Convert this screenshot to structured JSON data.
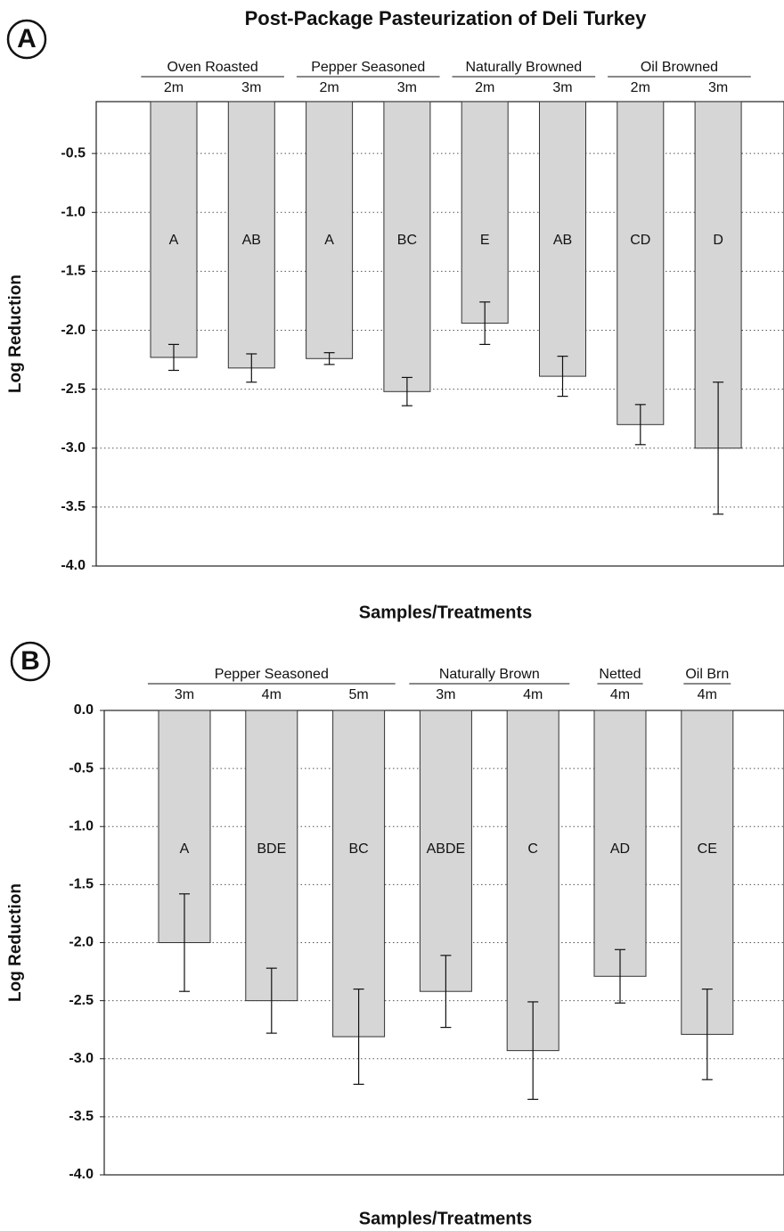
{
  "chart_data": [
    {
      "type": "bar",
      "title": "Post-Package Pasteurization of Deli Turkey",
      "panel": "A",
      "x_label": "Samples/Treatments",
      "y_label": "Log Reduction",
      "ylim": [
        -4.0,
        -0.06
      ],
      "yticks": [
        -0.5,
        {
          "value": -1.0,
          "label": "-1.0"
        },
        -1.5,
        {
          "value": -2.0,
          "label": "-2.0"
        },
        -2.5,
        {
          "value": -3.0,
          "label": "-3.0"
        },
        -3.5,
        {
          "value": -4.0,
          "label": "-4.0"
        }
      ],
      "grid": true,
      "color": "#d6d6d6",
      "groups": [
        {
          "name": "Oven Roasted",
          "categories": [
            "2m",
            "3m"
          ],
          "values": [
            -2.23,
            -2.32
          ],
          "errors": [
            0.11,
            0.12
          ],
          "letters": [
            "A",
            "AB"
          ]
        },
        {
          "name": "Pepper Seasoned",
          "categories": [
            "2m",
            "3m"
          ],
          "values": [
            -2.24,
            -2.52
          ],
          "errors": [
            0.05,
            0.12
          ],
          "letters": [
            "A",
            "BC"
          ]
        },
        {
          "name": "Naturally Browned",
          "categories": [
            "2m",
            "3m"
          ],
          "values": [
            -1.94,
            -2.39
          ],
          "errors": [
            0.18,
            0.17
          ],
          "letters": [
            "E",
            "AB"
          ]
        },
        {
          "name": "Oil Browned",
          "categories": [
            "2m",
            "3m"
          ],
          "values": [
            -2.8,
            -3.0
          ],
          "errors": [
            0.17,
            0.56
          ],
          "letters": [
            "CD",
            "D"
          ]
        }
      ]
    },
    {
      "type": "bar",
      "panel": "B",
      "x_label": "Samples/Treatments",
      "y_label": "Log Reduction",
      "ylim": [
        -4.0,
        0.0
      ],
      "yticks": [
        {
          "value": 0.0,
          "label": "0.0"
        },
        -0.5,
        {
          "value": -1.0,
          "label": "-1.0"
        },
        -1.5,
        {
          "value": -2.0,
          "label": "-2.0"
        },
        -2.5,
        {
          "value": -3.0,
          "label": "-3.0"
        },
        -3.5,
        {
          "value": -4.0,
          "label": "-4.0"
        }
      ],
      "grid": true,
      "color": "#d6d6d6",
      "groups": [
        {
          "name": "Pepper Seasoned",
          "categories": [
            "3m",
            "4m",
            "5m"
          ],
          "values": [
            -2.0,
            -2.5,
            -2.81
          ],
          "errors": [
            0.42,
            0.28,
            0.41
          ],
          "letters": [
            "A",
            "BDE",
            "BC"
          ]
        },
        {
          "name": "Naturally Brown",
          "categories": [
            "3m",
            "4m"
          ],
          "values": [
            -2.42,
            -2.93
          ],
          "errors": [
            0.31,
            0.42
          ],
          "letters": [
            "ABDE",
            "C"
          ]
        },
        {
          "name": "Netted",
          "categories": [
            "4m"
          ],
          "values": [
            -2.29
          ],
          "errors": [
            0.23
          ],
          "letters": [
            "AD"
          ]
        },
        {
          "name": "Oil Brn",
          "categories": [
            "4m"
          ],
          "values": [
            -2.79
          ],
          "errors": [
            0.39
          ],
          "letters": [
            "CE"
          ]
        }
      ]
    }
  ]
}
